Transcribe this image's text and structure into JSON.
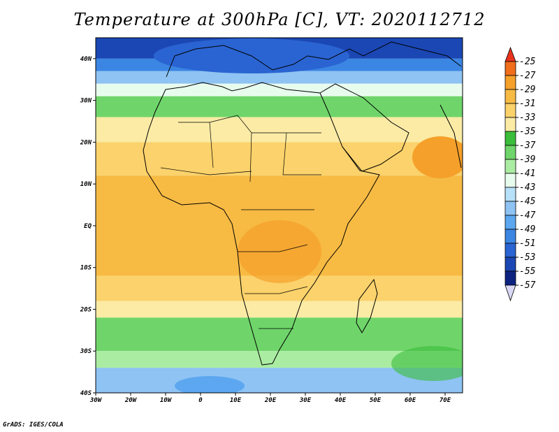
{
  "title": "Temperature at 300hPa [C], VT: 2020112712",
  "credit": "GrADS: IGES/COLA",
  "map": {
    "lon_range": [
      -30,
      75
    ],
    "lat_range": [
      -40,
      45
    ],
    "lat_ticks": [
      {
        "lat": 40,
        "label": "40N"
      },
      {
        "lat": 30,
        "label": "30N"
      },
      {
        "lat": 20,
        "label": "20N"
      },
      {
        "lat": 10,
        "label": "10N"
      },
      {
        "lat": 0,
        "label": "EQ"
      },
      {
        "lat": -10,
        "label": "10S"
      },
      {
        "lat": -20,
        "label": "20S"
      },
      {
        "lat": -30,
        "label": "30S"
      },
      {
        "lat": -40,
        "label": "40S"
      }
    ],
    "lon_ticks": [
      {
        "lon": -30,
        "label": "30W"
      },
      {
        "lon": -20,
        "label": "20W"
      },
      {
        "lon": -10,
        "label": "10W"
      },
      {
        "lon": 0,
        "label": "0"
      },
      {
        "lon": 10,
        "label": "10E"
      },
      {
        "lon": 20,
        "label": "20E"
      },
      {
        "lon": 30,
        "label": "30E"
      },
      {
        "lon": 40,
        "label": "40E"
      },
      {
        "lon": 50,
        "label": "50E"
      },
      {
        "lon": 60,
        "label": "60E"
      },
      {
        "lon": 70,
        "label": "70E"
      }
    ]
  },
  "colorbar": {
    "labels": [
      "-25",
      "-27",
      "-29",
      "-31",
      "-33",
      "-35",
      "-37",
      "-39",
      "-41",
      "-43",
      "-45",
      "-47",
      "-49",
      "-51",
      "-53",
      "-55",
      "-57"
    ],
    "colors": [
      "#e8321e",
      "#f06e1c",
      "#f5a02a",
      "#f7ba43",
      "#fbd26b",
      "#fbeba5",
      "#3bbd3b",
      "#6fd56a",
      "#aaeda2",
      "#e8fcee",
      "#b7e1f9",
      "#8ec3f3",
      "#5ca7ef",
      "#3b86e3",
      "#2a64d2",
      "#1b47b4",
      "#0d2380",
      "#d9d9f5"
    ]
  },
  "field_bands": [
    {
      "color": "#1b47b4",
      "lat_n": 45,
      "lat_s": 40
    },
    {
      "color": "#3b86e3",
      "lat_n": 40,
      "lat_s": 37
    },
    {
      "color": "#8ec3f3",
      "lat_n": 37,
      "lat_s": 34
    },
    {
      "color": "#e8fcee",
      "lat_n": 34,
      "lat_s": 31
    },
    {
      "color": "#6fd56a",
      "lat_n": 31,
      "lat_s": 26
    },
    {
      "color": "#fbeba5",
      "lat_n": 26,
      "lat_s": 20
    },
    {
      "color": "#fbd26b",
      "lat_n": 20,
      "lat_s": 12
    },
    {
      "color": "#f7ba43",
      "lat_n": 12,
      "lat_s": -12
    },
    {
      "color": "#fbd26b",
      "lat_n": -12,
      "lat_s": -18
    },
    {
      "color": "#fbeba5",
      "lat_n": -18,
      "lat_s": -22
    },
    {
      "color": "#6fd56a",
      "lat_n": -22,
      "lat_s": -30
    },
    {
      "color": "#aaeda2",
      "lat_n": -30,
      "lat_s": -34
    },
    {
      "color": "#8ec3f3",
      "lat_n": -34,
      "lat_s": -40
    }
  ]
}
